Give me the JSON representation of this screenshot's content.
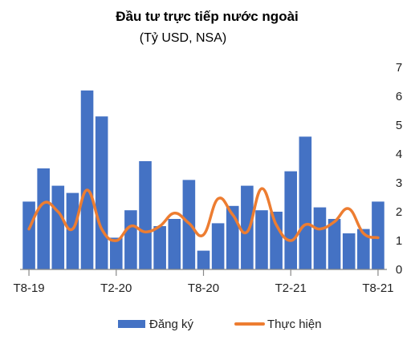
{
  "chart_data": {
    "type": "bar+line",
    "title": "Đầu tư trực tiếp nước ngoài",
    "subtitle": "(Tỷ USD, NSA)",
    "x": [
      "T8-19",
      "T9-19",
      "T10-19",
      "T11-19",
      "T12-19",
      "T1-20",
      "T2-20",
      "T3-20",
      "T4-20",
      "T5-20",
      "T6-20",
      "T7-20",
      "T8-20",
      "T9-20",
      "T10-20",
      "T11-20",
      "T12-20",
      "T1-21",
      "T2-21",
      "T3-21",
      "T4-21",
      "T5-21",
      "T6-21",
      "T7-21",
      "T8-21"
    ],
    "x_tick_labels": [
      {
        "index": 0,
        "label": "T8-19"
      },
      {
        "index": 6,
        "label": "T2-20"
      },
      {
        "index": 12,
        "label": "T8-20"
      },
      {
        "index": 18,
        "label": "T2-21"
      },
      {
        "index": 24,
        "label": "T8-21"
      }
    ],
    "series": [
      {
        "name": "Đăng ký",
        "type": "bar",
        "color": "#4472C4",
        "values": [
          2.35,
          3.5,
          2.9,
          2.65,
          6.2,
          5.3,
          1.1,
          2.05,
          3.75,
          1.5,
          1.75,
          3.1,
          0.65,
          1.6,
          2.2,
          2.9,
          2.05,
          2.0,
          3.4,
          4.6,
          2.15,
          1.75,
          1.25,
          1.4,
          2.35
        ]
      },
      {
        "name": "Thực hiện",
        "type": "line",
        "color": "#ED7D31",
        "values": [
          1.4,
          2.3,
          2.0,
          1.4,
          2.75,
          1.4,
          1.0,
          1.5,
          1.3,
          1.5,
          1.95,
          1.6,
          1.2,
          2.45,
          1.9,
          1.3,
          2.8,
          1.55,
          1.0,
          1.55,
          1.4,
          1.65,
          2.1,
          1.25,
          1.1
        ]
      }
    ],
    "y_axis": {
      "position": "right",
      "min": 0,
      "max": 7,
      "ticks": [
        0,
        1,
        2,
        3,
        4,
        5,
        6,
        7
      ]
    },
    "grid": false,
    "legend": "bottom"
  }
}
